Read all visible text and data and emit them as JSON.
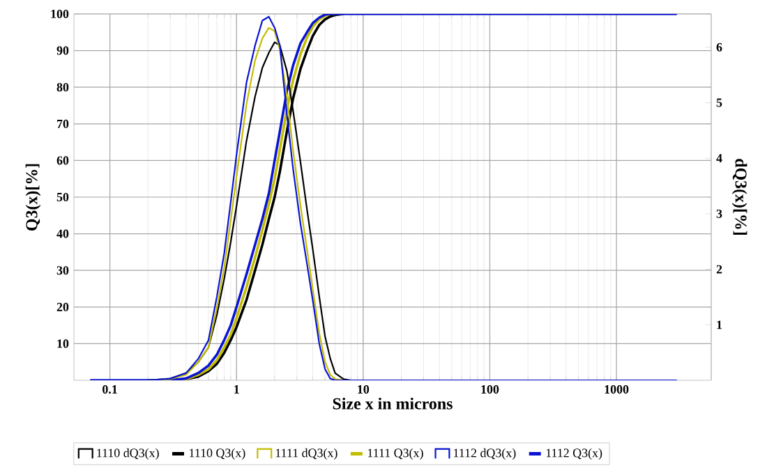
{
  "chart_data": {
    "type": "line",
    "x": [
      0.07,
      0.1,
      0.2,
      0.3,
      0.4,
      0.5,
      0.6,
      0.7,
      0.8,
      0.9,
      1.0,
      1.2,
      1.4,
      1.6,
      1.8,
      2.0,
      2.2,
      2.5,
      2.8,
      3.2,
      3.6,
      4.0,
      4.5,
      5.0,
      5.5,
      6.0,
      7.0,
      8.0,
      10,
      20,
      100,
      1000,
      3000
    ],
    "series": [
      {
        "name": "1110 dQ3(x)",
        "color": "#000000",
        "axis": "y2",
        "values": [
          null,
          null,
          0,
          0.03,
          0.13,
          0.33,
          0.59,
          1.18,
          1.83,
          2.49,
          3.14,
          4.32,
          5.11,
          5.63,
          5.9,
          6.09,
          6.03,
          5.57,
          4.85,
          3.93,
          3.08,
          2.36,
          1.51,
          0.79,
          0.39,
          0.13,
          0.02,
          0,
          0,
          null,
          null,
          null,
          null
        ]
      },
      {
        "name": "1110 Q3(x)",
        "color": "#000000",
        "values": [
          null,
          null,
          0,
          0,
          0.3,
          1,
          2.5,
          4.5,
          7.5,
          11,
          14.5,
          22,
          30,
          37,
          44,
          50,
          57,
          68,
          77,
          85,
          90,
          94,
          97,
          98.5,
          99.3,
          99.7,
          100,
          null,
          null,
          null,
          null,
          null,
          null
        ]
      },
      {
        "name": "1111 dQ3(x)",
        "color": "#c3bd00",
        "axis": "y2",
        "values": [
          null,
          null,
          0,
          0.02,
          0.1,
          0.33,
          0.59,
          1.31,
          2.03,
          2.88,
          3.67,
          4.98,
          5.76,
          6.16,
          6.35,
          6.29,
          5.96,
          5.11,
          4.13,
          3.14,
          2.36,
          1.64,
          0.85,
          0.33,
          0.1,
          0.02,
          0,
          0,
          0,
          null,
          null,
          null,
          null
        ]
      },
      {
        "name": "1111 Q3(x)",
        "color": "#c3bd00",
        "values": [
          null,
          null,
          0,
          0,
          0.3,
          1.5,
          3,
          5.5,
          9,
          12.5,
          17,
          25.5,
          33.5,
          41,
          48,
          55,
          63,
          74,
          82,
          89,
          93.5,
          96.5,
          98.5,
          99.5,
          100,
          100,
          null,
          null,
          null,
          null,
          null,
          null,
          null
        ]
      },
      {
        "name": "1112 dQ3(x)",
        "color": "#0a14d2",
        "axis": "y2",
        "values": [
          0,
          0,
          0,
          0.03,
          0.13,
          0.39,
          0.72,
          1.51,
          2.29,
          3.21,
          4.06,
          5.37,
          6.03,
          6.48,
          6.55,
          6.35,
          6.03,
          4.78,
          3.8,
          2.82,
          2.1,
          1.44,
          0.66,
          0.2,
          0.03,
          0,
          0,
          0,
          0,
          0,
          0,
          0,
          0
        ]
      },
      {
        "name": "1112 Q3(x)",
        "color": "#0a14d2",
        "values": [
          0,
          0,
          0,
          0,
          0.5,
          2,
          4,
          7,
          11,
          15,
          20,
          29,
          37,
          44,
          51,
          60,
          68,
          79,
          86,
          92,
          95,
          97.5,
          99,
          99.8,
          100,
          100,
          100,
          100,
          100,
          100,
          100,
          100,
          100
        ]
      }
    ],
    "xlabel": "Size x in microns",
    "ylabel": "Q3(x)[%]",
    "y2label": "dQ3(x)[%]",
    "xlim": [
      0.052,
      5600
    ],
    "xticks": [
      0.1,
      1,
      10,
      100,
      1000
    ],
    "ylim": [
      0,
      100
    ],
    "yticks": [
      10,
      20,
      30,
      40,
      50,
      60,
      70,
      80,
      90,
      100
    ],
    "y2lim": [
      0,
      6.6
    ],
    "y2ticks": [
      1,
      2,
      3,
      4,
      5,
      6
    ],
    "log": "x",
    "grid": true,
    "legend": "bottom"
  }
}
